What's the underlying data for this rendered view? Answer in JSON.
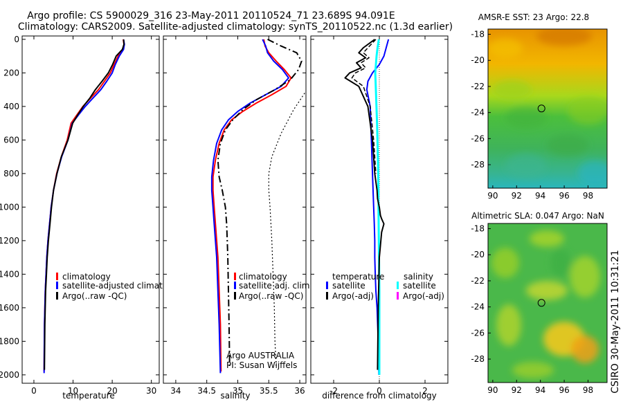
{
  "header": {
    "line1": "Argo profile: CS 5900029_316 23-May-2011 20110524_71 23.689S 94.091E",
    "line2": "Climatology: CARS2009. Satellite-adjusted climatology: synTS_20110522.nc (1.3d earlier)"
  },
  "side_stamp": "CSIRO 30-May-2011 10:31:21",
  "colors": {
    "climatology": "#ff0000",
    "satellite": "#0000ff",
    "argo": "#000000",
    "cyan": "#00ffff",
    "magenta": "#ff00ff"
  },
  "chart_data": [
    {
      "type": "line",
      "id": "temperature",
      "xlabel": "temperature",
      "ylabel": "",
      "xlim": [
        -3,
        32
      ],
      "ylim": [
        2050,
        -20
      ],
      "xticks": [
        "0",
        "10",
        "20",
        "30"
      ],
      "xtick_values": [
        0,
        10,
        20,
        30
      ],
      "yticks": [
        "0",
        "200",
        "400",
        "600",
        "800",
        "1000",
        "1200",
        "1400",
        "1600",
        "1800",
        "2000"
      ],
      "ytick_values": [
        0,
        200,
        400,
        600,
        800,
        1000,
        1200,
        1400,
        1600,
        1800,
        2000
      ],
      "legend": [
        {
          "label": "climatology",
          "color": "#ff0000"
        },
        {
          "label": "satellite-adjusted climatolo",
          "color": "#0000ff"
        },
        {
          "label": "Argo(..raw -QC)",
          "color": "#000000"
        }
      ],
      "series": [
        {
          "name": "climatology",
          "color": "#ff0000",
          "width": 2,
          "dash": "",
          "x": [
            22.8,
            23.0,
            22.7,
            21.5,
            20.5,
            19.5,
            18.0,
            16.5,
            14.5,
            12.5,
            11.0,
            9.5,
            8.5,
            7.0,
            5.8,
            5.0,
            4.4,
            4.0,
            3.6,
            3.3,
            3.1,
            2.9,
            2.7,
            2.6
          ],
          "y": [
            0,
            30,
            60,
            100,
            150,
            200,
            250,
            300,
            350,
            400,
            450,
            500,
            600,
            700,
            800,
            900,
            1000,
            1100,
            1200,
            1300,
            1400,
            1500,
            1700,
            1980
          ]
        },
        {
          "name": "satellite-adjusted climatology",
          "color": "#0000ff",
          "width": 2,
          "dash": "",
          "x": [
            22.9,
            23.1,
            22.9,
            21.8,
            20.8,
            20.0,
            18.6,
            17.1,
            15.1,
            13.1,
            11.4,
            9.8,
            8.7,
            7.1,
            5.9,
            5.0,
            4.4,
            4.0,
            3.6,
            3.3,
            3.1,
            2.9,
            2.7,
            2.6
          ],
          "y": [
            0,
            30,
            60,
            100,
            150,
            200,
            250,
            300,
            350,
            400,
            450,
            500,
            600,
            700,
            800,
            900,
            1000,
            1100,
            1200,
            1300,
            1400,
            1500,
            1700,
            1990
          ]
        },
        {
          "name": "Argo",
          "color": "#000000",
          "width": 2,
          "dash": "",
          "x": [
            22.9,
            23.0,
            22.6,
            21.0,
            20.1,
            19.0,
            17.4,
            15.7,
            14.3,
            12.6,
            11.2,
            9.9,
            8.7,
            7.0,
            5.9,
            5.0,
            4.5,
            4.1,
            3.7,
            3.4,
            3.2,
            3.0,
            2.8,
            2.7
          ],
          "y": [
            0,
            30,
            60,
            100,
            150,
            200,
            250,
            300,
            350,
            400,
            450,
            500,
            600,
            700,
            800,
            900,
            1000,
            1100,
            1200,
            1300,
            1400,
            1500,
            1700,
            1970
          ]
        }
      ]
    },
    {
      "type": "line",
      "id": "salinity",
      "xlabel": "salinity",
      "ylabel": "",
      "xlim": [
        33.8,
        36.1
      ],
      "ylim": [
        2050,
        -20
      ],
      "xticks": [
        "34",
        "34.5",
        "35",
        "35.5",
        "36"
      ],
      "xtick_values": [
        34,
        34.5,
        35,
        35.5,
        36
      ],
      "legend": [
        {
          "label": "climatology",
          "color": "#ff0000"
        },
        {
          "label": "satellite adj. clim.",
          "color": "#0000ff"
        },
        {
          "label": "Argo(..raw -QC)",
          "color": "#000000"
        }
      ],
      "annotation": [
        "Argo AUSTRALIA",
        "PI: Susan Wijffels"
      ],
      "series": [
        {
          "name": "climatology",
          "color": "#ff0000",
          "width": 2,
          "dash": "",
          "x": [
            35.42,
            35.44,
            35.5,
            35.62,
            35.75,
            35.86,
            35.78,
            35.55,
            35.3,
            35.08,
            34.9,
            34.78,
            34.7,
            34.64,
            34.6,
            34.6,
            34.62,
            34.64,
            34.66,
            34.68,
            34.7,
            34.72,
            34.73
          ],
          "y": [
            0,
            40,
            80,
            130,
            180,
            230,
            280,
            330,
            380,
            430,
            480,
            540,
            620,
            720,
            820,
            900,
            1000,
            1100,
            1200,
            1300,
            1500,
            1700,
            1980
          ]
        },
        {
          "name": "satellite adj. clim.",
          "color": "#0000ff",
          "width": 2,
          "dash": "",
          "x": [
            35.4,
            35.45,
            35.48,
            35.58,
            35.72,
            35.82,
            35.7,
            35.45,
            35.2,
            35.0,
            34.85,
            34.74,
            34.66,
            34.61,
            34.58,
            34.58,
            34.6,
            34.62,
            34.64,
            34.66,
            34.68,
            34.7,
            34.72
          ],
          "y": [
            0,
            40,
            80,
            130,
            180,
            230,
            280,
            330,
            380,
            430,
            480,
            540,
            620,
            720,
            820,
            900,
            1000,
            1100,
            1200,
            1300,
            1500,
            1700,
            1990
          ]
        },
        {
          "name": "Argo",
          "color": "#000000",
          "width": 2,
          "dash": "10,4,2,4",
          "x": [
            35.48,
            35.7,
            35.95,
            36.03,
            35.98,
            35.85,
            35.6,
            35.3,
            35.08,
            34.92,
            34.8,
            34.72,
            34.68,
            34.7,
            34.75,
            34.8,
            34.82,
            34.83,
            34.84,
            34.85,
            34.86,
            34.87
          ],
          "y": [
            0,
            40,
            80,
            130,
            180,
            240,
            300,
            360,
            420,
            480,
            540,
            620,
            720,
            820,
            900,
            1000,
            1100,
            1200,
            1300,
            1500,
            1700,
            1960
          ]
        },
        {
          "name": "",
          "color": "#000000",
          "width": 1.2,
          "dash": "2,3",
          "x": [
            36.08,
            35.9,
            35.7,
            35.55,
            35.5,
            35.5,
            35.52,
            35.55,
            35.57,
            35.59,
            35.6,
            35.62
          ],
          "y": [
            320,
            420,
            560,
            700,
            800,
            900,
            1000,
            1200,
            1400,
            1600,
            1800,
            1950
          ]
        }
      ]
    },
    {
      "type": "line",
      "id": "difference",
      "xlabel": "difference from climatology",
      "ylabel": "",
      "xlim": [
        -3.0,
        3.0
      ],
      "ylim": [
        2050,
        -20
      ],
      "xticks": [
        "-2",
        "0",
        "2"
      ],
      "xtick_values": [
        -2,
        0,
        2
      ],
      "legend_left_title": "temperature",
      "legend_right_title": "salinity",
      "legend": [
        {
          "label": "satellite",
          "color": "#0000ff"
        },
        {
          "label": "Argo(-adj)",
          "color": "#000000"
        },
        {
          "label": "satellite",
          "color": "#00ffff"
        },
        {
          "label": "Argo(-adj)",
          "color": "#ff00ff"
        }
      ],
      "series": [
        {
          "name": "temperature satellite",
          "color": "#0000ff",
          "width": 2,
          "dash": "",
          "x": [
            0.4,
            0.3,
            0.2,
            0.0,
            -0.3,
            -0.5,
            -0.55,
            -0.4,
            -0.35,
            -0.3,
            -0.25,
            -0.22,
            -0.2,
            -0.2,
            -0.18,
            -0.15,
            -0.1,
            -0.05,
            -0.02
          ],
          "y": [
            0,
            50,
            100,
            150,
            200,
            250,
            300,
            400,
            600,
            800,
            1000,
            1100,
            1200,
            1300,
            1400,
            1500,
            1600,
            1800,
            2000
          ]
        },
        {
          "name": "salinity satellite",
          "color": "#00ffff",
          "width": 3,
          "dash": "",
          "x": [
            -0.02,
            -0.08,
            -0.12,
            -0.18,
            -0.15,
            -0.1,
            -0.05,
            -0.03,
            0.0,
            0.0
          ],
          "y": [
            0,
            50,
            100,
            200,
            300,
            500,
            800,
            1100,
            1500,
            2000
          ]
        },
        {
          "name": "temperature Argo",
          "color": "#000000",
          "width": 2,
          "dash": "",
          "x": [
            -0.2,
            -0.7,
            -0.9,
            -0.6,
            -1.0,
            -0.8,
            -1.3,
            -1.5,
            -0.9,
            -0.5,
            -0.3,
            -0.2,
            -0.1,
            -0.08,
            0.0,
            0.05,
            0.1,
            0.2,
            0.1,
            0.0,
            -0.05,
            -0.08
          ],
          "y": [
            0,
            50,
            80,
            110,
            140,
            170,
            200,
            230,
            280,
            400,
            600,
            800,
            900,
            950,
            1000,
            1050,
            1070,
            1100,
            1150,
            1300,
            1600,
            1970
          ]
        },
        {
          "name": "temperature Argo (dashed)",
          "color": "#000000",
          "width": 1.5,
          "dash": "6,3",
          "x": [
            -0.15,
            -0.5,
            -0.7,
            -0.45,
            -0.8,
            -0.6,
            -1.05,
            -1.2,
            -0.7,
            -0.4,
            -0.25,
            -0.15
          ],
          "y": [
            0,
            50,
            80,
            110,
            140,
            170,
            200,
            230,
            280,
            400,
            600,
            800
          ]
        }
      ]
    },
    {
      "type": "heatmap",
      "id": "sst",
      "title": "AMSR-E SST: 23 Argo: 22.8",
      "xticks": [
        "90",
        "92",
        "94",
        "96",
        "98"
      ],
      "xtick_values": [
        90,
        92,
        94,
        96,
        98
      ],
      "yticks": [
        "-18",
        "-20",
        "-22",
        "-24",
        "-26",
        "-28"
      ],
      "ytick_values": [
        -18,
        -20,
        -22,
        -24,
        -26,
        -28
      ],
      "xlim": [
        89.6,
        99.6
      ],
      "ylim": [
        -29.8,
        -17.6
      ],
      "marker": {
        "lon": 94.09,
        "lat": -23.69
      }
    },
    {
      "type": "heatmap",
      "id": "sla",
      "title": "Altimetric SLA: 0.047 Argo: NaN",
      "xticks": [
        "90",
        "92",
        "94",
        "96",
        "98"
      ],
      "xtick_values": [
        90,
        92,
        94,
        96,
        98
      ],
      "yticks": [
        "-18",
        "-20",
        "-22",
        "-24",
        "-26",
        "-28"
      ],
      "ytick_values": [
        -18,
        -20,
        -22,
        -24,
        -26,
        -28
      ],
      "xlim": [
        89.6,
        99.6
      ],
      "ylim": [
        -29.8,
        -17.6
      ],
      "marker": {
        "lon": 94.09,
        "lat": -23.69
      }
    }
  ]
}
